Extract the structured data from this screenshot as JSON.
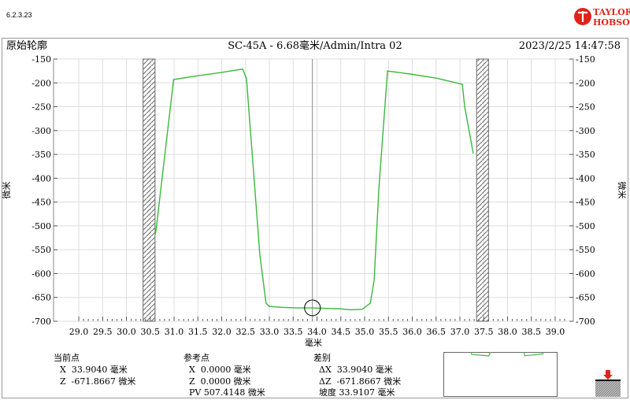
{
  "version": "6.2.3.23",
  "logo": {
    "line1": "TAYLOR",
    "line2": "HOBSON",
    "color": "#e2231a"
  },
  "header": {
    "left": "原始轮廓",
    "center": "SC-45A - 6.68毫米/Admin/Intra 02",
    "right": "2023/2/25 14:47:58"
  },
  "chart_data": {
    "type": "line",
    "xlabel": "毫米",
    "ylabel": "微米",
    "xlim": [
      28.47,
      39.38
    ],
    "ylim": [
      -700,
      -150
    ],
    "xticks": [
      "29.0",
      "29.5",
      "30.0",
      "30.5",
      "31.0",
      "31.5",
      "32.0",
      "32.5",
      "33.0",
      "33.5",
      "34.0",
      "34.5",
      "35.0",
      "35.5",
      "36.0",
      "36.5",
      "37.0",
      "37.5",
      "38.0",
      "38.5",
      "39.0"
    ],
    "yticks": [
      "-150",
      "-200",
      "-250",
      "-300",
      "-350",
      "-400",
      "-450",
      "-500",
      "-550",
      "-600",
      "-650",
      "-700"
    ],
    "grid": true,
    "series_color": "#3cb83c",
    "series": [
      {
        "x": [
          30.6,
          30.62,
          30.99,
          31.5,
          32.0,
          32.44,
          32.52,
          32.8,
          32.93,
          33.0,
          33.3,
          33.6,
          33.9,
          34.2,
          34.5,
          34.7,
          34.95,
          35.12,
          35.2,
          35.3,
          35.48,
          36.0,
          36.5,
          37.05,
          37.1,
          37.28
        ],
        "y": [
          -519,
          -510,
          -193,
          -185,
          -178,
          -171,
          -191,
          -560,
          -662,
          -669,
          -671,
          -672,
          -672,
          -673,
          -674,
          -676,
          -675,
          -662,
          -613,
          -420,
          -175,
          -182,
          -190,
          -203,
          -250,
          -348
        ]
      }
    ],
    "excluded_regions": [
      [
        30.35,
        30.6
      ],
      [
        37.35,
        37.6
      ]
    ],
    "cursor": {
      "x": 33.904,
      "y": -671.8667
    }
  },
  "readout": {
    "current": {
      "title": "当前点",
      "x": "X  33.9040 毫米",
      "z": "Z  -671.8667 微米"
    },
    "reference": {
      "title": "参考点",
      "x": "X  0.0000 毫米",
      "z": "Z  0.0000 微米",
      "pv": "PV 507.4148 微米"
    },
    "diff": {
      "title": "差别",
      "dx": "ΔX  33.9040 毫米",
      "dz": "ΔZ  -671.8667 微米",
      "slope": "坡度 33.9107 毫米"
    }
  }
}
